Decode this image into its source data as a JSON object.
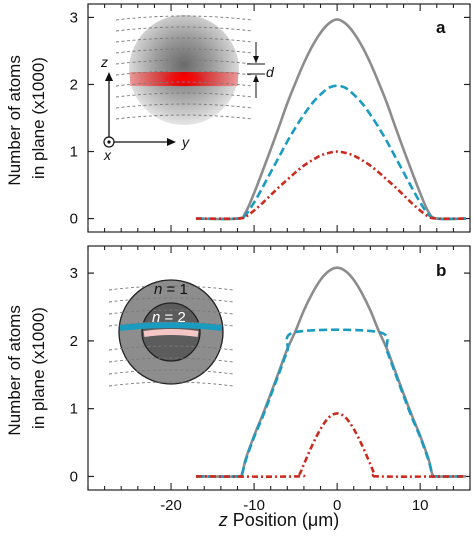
{
  "chart_data": [
    {
      "type": "line",
      "panel_label": "a",
      "ylabel_lines": [
        "Number of atoms",
        "in plane (x1000)"
      ],
      "xlim": [
        -30,
        16
      ],
      "ylim": [
        -0.2,
        3.2
      ],
      "yticks": [
        "0",
        "1",
        "2",
        "3"
      ],
      "ytick_values": [
        0,
        1,
        2,
        3
      ],
      "grid": false,
      "series": [
        {
          "color": "#8c8c8c",
          "dash": "solid",
          "x": [
            -17,
            -12,
            -11,
            -10,
            -9,
            -8,
            -7,
            -6,
            -5,
            -4,
            -3,
            -2,
            -1,
            0,
            1,
            2,
            3,
            4,
            5,
            6,
            7,
            8,
            9,
            10,
            11,
            12,
            15.5
          ],
          "y": [
            0,
            0,
            0.1,
            0.38,
            0.7,
            1.03,
            1.37,
            1.72,
            2.03,
            2.32,
            2.57,
            2.77,
            2.91,
            2.97,
            2.91,
            2.77,
            2.57,
            2.32,
            2.03,
            1.72,
            1.37,
            1.03,
            0.7,
            0.38,
            0.1,
            0,
            0
          ]
        },
        {
          "color": "#1a9bc0",
          "dash": "dashed",
          "x": [
            -17,
            -12,
            -11,
            -10,
            -9,
            -8,
            -7,
            -6,
            -5,
            -4,
            -3,
            -2,
            -1,
            0,
            1,
            2,
            3,
            4,
            5,
            6,
            7,
            8,
            9,
            10,
            11,
            12,
            15.5
          ],
          "y": [
            0,
            0,
            0.06,
            0.24,
            0.46,
            0.69,
            0.92,
            1.15,
            1.36,
            1.55,
            1.72,
            1.85,
            1.95,
            1.98,
            1.95,
            1.85,
            1.72,
            1.55,
            1.36,
            1.15,
            0.92,
            0.69,
            0.46,
            0.24,
            0.06,
            0,
            0
          ]
        },
        {
          "color": "#cc2a1e",
          "dash": "dashdot",
          "x": [
            -17,
            -12,
            -11,
            -10,
            -9,
            -8,
            -7,
            -6,
            -5,
            -4,
            -3,
            -2,
            -1,
            0,
            1,
            2,
            3,
            4,
            5,
            6,
            7,
            8,
            9,
            10,
            11,
            12,
            15.5
          ],
          "y": [
            0,
            0,
            0.03,
            0.12,
            0.23,
            0.35,
            0.47,
            0.58,
            0.69,
            0.79,
            0.87,
            0.94,
            0.98,
            1.0,
            0.98,
            0.94,
            0.87,
            0.79,
            0.69,
            0.58,
            0.47,
            0.35,
            0.23,
            0.12,
            0.03,
            0,
            0
          ]
        }
      ],
      "inset": {
        "type": "cloud",
        "axis_labels": {
          "z": "z",
          "y": "y",
          "x": "x"
        },
        "spacing_label": "d"
      }
    },
    {
      "type": "line",
      "panel_label": "b",
      "ylabel_lines": [
        "Number of atoms",
        "in plane (x1000)"
      ],
      "xlabel_var": "z",
      "xlabel_rest": " Position (μm)",
      "xlim": [
        -30,
        16
      ],
      "ylim": [
        -0.2,
        3.4
      ],
      "xticks": [
        "-20",
        "-10",
        "0",
        "10"
      ],
      "xtick_values": [
        -20,
        -10,
        0,
        10
      ],
      "yticks": [
        "0",
        "1",
        "2",
        "3"
      ],
      "ytick_values": [
        0,
        1,
        2,
        3
      ],
      "grid": false,
      "series": [
        {
          "color": "#8c8c8c",
          "dash": "solid",
          "x": [
            -17,
            -12,
            -11.5,
            -11,
            -10,
            -9,
            -8,
            -7,
            -6,
            -5,
            -4,
            -3,
            -2,
            -1,
            0,
            1,
            2,
            3,
            4,
            5,
            6,
            7,
            8,
            9,
            10,
            11,
            11.5,
            12,
            15.5
          ],
          "y": [
            0,
            0,
            0.02,
            0.26,
            0.6,
            0.9,
            1.22,
            1.55,
            1.88,
            2.15,
            2.45,
            2.7,
            2.9,
            3.03,
            3.08,
            3.03,
            2.9,
            2.7,
            2.45,
            2.15,
            1.88,
            1.55,
            1.22,
            0.9,
            0.6,
            0.26,
            0.02,
            0,
            0
          ]
        },
        {
          "color": "#1a9bc0",
          "dash": "dashed",
          "x": [
            -17,
            -12,
            -11.5,
            -11,
            -10,
            -9,
            -8,
            -7,
            -6,
            -5,
            5,
            6,
            7,
            8,
            9,
            10,
            11,
            11.5,
            12,
            15.5
          ],
          "y": [
            0,
            0,
            0.02,
            0.24,
            0.58,
            0.87,
            1.19,
            1.52,
            1.85,
            2.13,
            2.13,
            1.85,
            1.52,
            1.19,
            0.87,
            0.58,
            0.24,
            0.02,
            0,
            0
          ],
          "plateau_label": "2.13"
        },
        {
          "color": "#cc2a1e",
          "dash": "dashdot",
          "x": [
            -17,
            -5,
            -4.5,
            -4,
            -3,
            -2,
            -1,
            0,
            1,
            2,
            3,
            4,
            4.5,
            5,
            15.5
          ],
          "y": [
            0,
            0,
            0.04,
            0.18,
            0.46,
            0.7,
            0.87,
            0.93,
            0.87,
            0.7,
            0.46,
            0.18,
            0.04,
            0,
            0
          ]
        }
      ],
      "inset": {
        "type": "shells",
        "inner_label_var": "n",
        "inner_label_rest": " = 2",
        "outer_label_var": "n",
        "outer_label_rest": " = 1"
      }
    }
  ]
}
